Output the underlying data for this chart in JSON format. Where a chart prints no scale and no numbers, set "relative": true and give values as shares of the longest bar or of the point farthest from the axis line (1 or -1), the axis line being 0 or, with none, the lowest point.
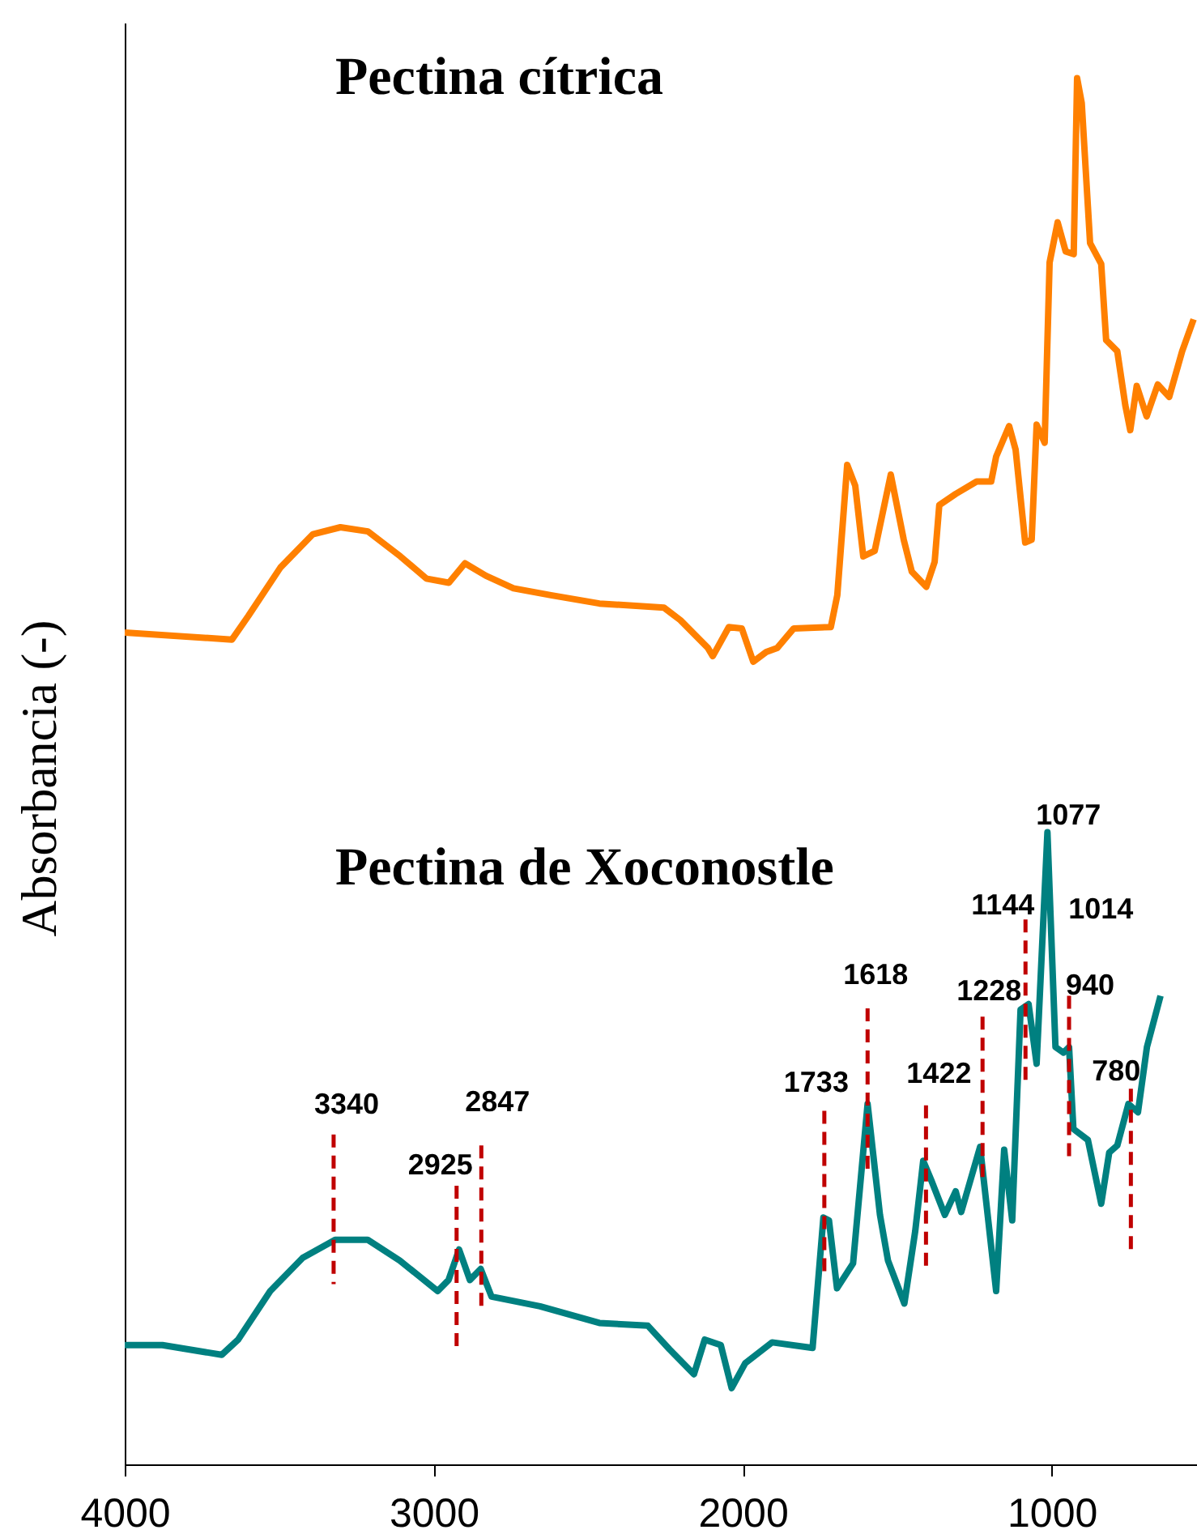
{
  "chart_data": {
    "type": "line",
    "ylabel": "Absorbancia (-)",
    "relative": true,
    "xlim": [
      4000,
      530
    ],
    "xticks": [
      4000,
      3000,
      2000,
      1000
    ],
    "series": [
      {
        "color": "#ff8000",
        "x": [
          4000,
          3653,
          3600,
          3496,
          3391,
          3302,
          3213,
          3108,
          3024,
          2951,
          2899,
          2831,
          2742,
          2621,
          2464,
          2255,
          2202,
          2113,
          2097,
          2045,
          2003,
          1966,
          1924,
          1888,
          1835,
          1715,
          1694,
          1662,
          1636,
          1610,
          1573,
          1521,
          1479,
          1453,
          1406,
          1379,
          1364,
          1311,
          1243,
          1196,
          1180,
          1138,
          1117,
          1086,
          1065,
          1049,
          1023,
          1007,
          981,
          955,
          929,
          918,
          903,
          876,
          840,
          824,
          788,
          762,
          746,
          725,
          693,
          657,
          620,
          578,
          541
        ],
        "values": [
          0.6,
          0.595,
          0.612,
          0.647,
          0.671,
          0.676,
          0.673,
          0.655,
          0.639,
          0.636,
          0.65,
          0.641,
          0.632,
          0.627,
          0.621,
          0.618,
          0.609,
          0.589,
          0.583,
          0.604,
          0.603,
          0.579,
          0.586,
          0.589,
          0.603,
          0.604,
          0.627,
          0.721,
          0.706,
          0.655,
          0.659,
          0.714,
          0.667,
          0.644,
          0.633,
          0.651,
          0.692,
          0.7,
          0.709,
          0.709,
          0.727,
          0.749,
          0.732,
          0.665,
          0.667,
          0.75,
          0.737,
          0.867,
          0.896,
          0.875,
          0.873,
          1.0,
          0.982,
          0.881,
          0.866,
          0.811,
          0.803,
          0.764,
          0.746,
          0.778,
          0.756,
          0.779,
          0.77,
          0.803,
          0.826
        ]
      },
      {
        "color": "#008080",
        "x": [
          4000,
          3878,
          3686,
          3633,
          3529,
          3424,
          3319,
          3214,
          3110,
          2987,
          2952,
          2918,
          2883,
          2848,
          2813,
          2656,
          2464,
          2307,
          2237,
          2158,
          2123,
          2071,
          2036,
          1992,
          1905,
          1774,
          1739,
          1721,
          1695,
          1643,
          1596,
          1556,
          1530,
          1477,
          1442,
          1416,
          1390,
          1346,
          1311,
          1293,
          1232,
          1180,
          1154,
          1128,
          1101,
          1075,
          1049,
          1014,
          988,
          962,
          944,
          930,
          883,
          840,
          814,
          788,
          752,
          721,
          692,
          648
        ],
        "values": [
          0.086,
          0.086,
          0.079,
          0.09,
          0.125,
          0.149,
          0.162,
          0.162,
          0.147,
          0.125,
          0.133,
          0.155,
          0.133,
          0.141,
          0.121,
          0.114,
          0.102,
          0.1,
          0.083,
          0.065,
          0.09,
          0.086,
          0.055,
          0.073,
          0.088,
          0.084,
          0.178,
          0.176,
          0.127,
          0.145,
          0.26,
          0.18,
          0.147,
          0.116,
          0.168,
          0.219,
          0.205,
          0.18,
          0.197,
          0.182,
          0.229,
          0.125,
          0.227,
          0.176,
          0.328,
          0.332,
          0.289,
          0.456,
          0.301,
          0.297,
          0.301,
          0.242,
          0.234,
          0.188,
          0.225,
          0.23,
          0.26,
          0.254,
          0.301,
          0.338
        ]
      },
      {
        "color": "#c00000",
        "line_style": "dashed",
        "x": [
          3324,
          3324
        ],
        "values": [
          0.238,
          0.13
        ]
      },
      {
        "color": "#c00000",
        "line_style": "dashed",
        "x": [
          2926,
          2926
        ],
        "values": [
          0.201,
          0.084
        ]
      },
      {
        "color": "#c00000",
        "line_style": "dashed",
        "x": [
          2846,
          2846
        ],
        "values": [
          0.23,
          0.113
        ]
      },
      {
        "color": "#c00000",
        "line_style": "dashed",
        "x": [
          1736,
          1736
        ],
        "values": [
          0.255,
          0.137
        ]
      },
      {
        "color": "#c00000",
        "line_style": "dashed",
        "x": [
          1596,
          1596
        ],
        "values": [
          0.329,
          0.211
        ]
      },
      {
        "color": "#c00000",
        "line_style": "dashed",
        "x": [
          1407,
          1407
        ],
        "values": [
          0.259,
          0.142
        ]
      },
      {
        "color": "#c00000",
        "line_style": "dashed",
        "x": [
          1224,
          1224
        ],
        "values": [
          0.323,
          0.206
        ]
      },
      {
        "color": "#c00000",
        "line_style": "dashed",
        "x": [
          1085,
          1085
        ],
        "values": [
          0.393,
          0.275
        ]
      },
      {
        "color": "#c00000",
        "line_style": "dashed",
        "x": [
          944,
          944
        ],
        "values": [
          0.338,
          0.22
        ]
      },
      {
        "color": "#c00000",
        "line_style": "dashed",
        "x": [
          744,
          744
        ],
        "values": [
          0.271,
          0.155
        ]
      }
    ],
    "annotations": [
      "Pectina cítrica",
      "Pectina de Xoconostle",
      {
        "text": "3340",
        "x": 3324,
        "y": 0.238
      },
      {
        "text": "2925",
        "x": 2926,
        "y": 0.201
      },
      {
        "text": "2847",
        "x": 2846,
        "y": 0.23
      },
      {
        "text": "1733",
        "x": 1736,
        "y": 0.255
      },
      {
        "text": "1618",
        "x": 1596,
        "y": 0.329
      },
      {
        "text": "1422",
        "x": 1407,
        "y": 0.259
      },
      {
        "text": "1228",
        "x": 1224,
        "y": 0.323
      },
      {
        "text": "1144",
        "x": 1085,
        "y": 0.393
      },
      {
        "text": "1077",
        "x": 1014,
        "y": 0.456
      },
      {
        "text": "1014",
        "x": 1014,
        "y": 0.456
      },
      {
        "text": "940",
        "x": 944,
        "y": 0.338
      },
      {
        "text": "780",
        "x": 744,
        "y": 0.271
      }
    ]
  }
}
